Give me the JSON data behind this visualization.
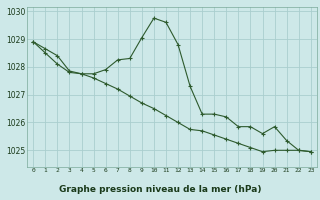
{
  "title": "Graphe pression niveau de la mer (hPa)",
  "background_color": "#cde8e8",
  "grid_color": "#aacece",
  "line_color": "#2d5a2d",
  "marker_color": "#2d5a2d",
  "xlim": [
    -0.5,
    23.5
  ],
  "ylim": [
    1024.4,
    1030.15
  ],
  "yticks": [
    1025,
    1026,
    1027,
    1028,
    1029,
    1030
  ],
  "xticks": [
    0,
    1,
    2,
    3,
    4,
    5,
    6,
    7,
    8,
    9,
    10,
    11,
    12,
    13,
    14,
    15,
    16,
    17,
    18,
    19,
    20,
    21,
    22,
    23
  ],
  "series1_x": [
    0,
    1,
    2,
    3,
    4,
    5,
    6,
    7,
    8,
    9,
    10,
    11,
    12,
    13,
    14,
    15,
    16,
    17,
    18,
    19,
    20,
    21,
    22,
    23
  ],
  "series1_y": [
    1028.9,
    1028.5,
    1028.1,
    1027.8,
    1027.75,
    1027.75,
    1027.9,
    1028.25,
    1028.3,
    1029.05,
    1029.75,
    1029.6,
    1028.8,
    1027.3,
    1026.3,
    1026.3,
    1026.2,
    1025.85,
    1025.85,
    1025.6,
    1025.85,
    1025.35,
    1025.0,
    1024.95
  ],
  "series2_x": [
    0,
    1,
    2,
    3,
    4,
    5,
    6,
    7,
    8,
    9,
    10,
    11,
    12,
    13,
    14,
    15,
    16,
    17,
    18,
    19,
    20,
    21,
    22,
    23
  ],
  "series2_y": [
    1028.9,
    1028.65,
    1028.4,
    1027.85,
    1027.75,
    1027.6,
    1027.4,
    1027.2,
    1026.95,
    1026.7,
    1026.5,
    1026.25,
    1026.0,
    1025.75,
    1025.7,
    1025.55,
    1025.4,
    1025.25,
    1025.1,
    1024.95,
    1025.0,
    1025.0,
    1025.0,
    1024.95
  ],
  "bottom_label_color": "#1a3a1a",
  "bottom_bg_color": "#8ab88a"
}
